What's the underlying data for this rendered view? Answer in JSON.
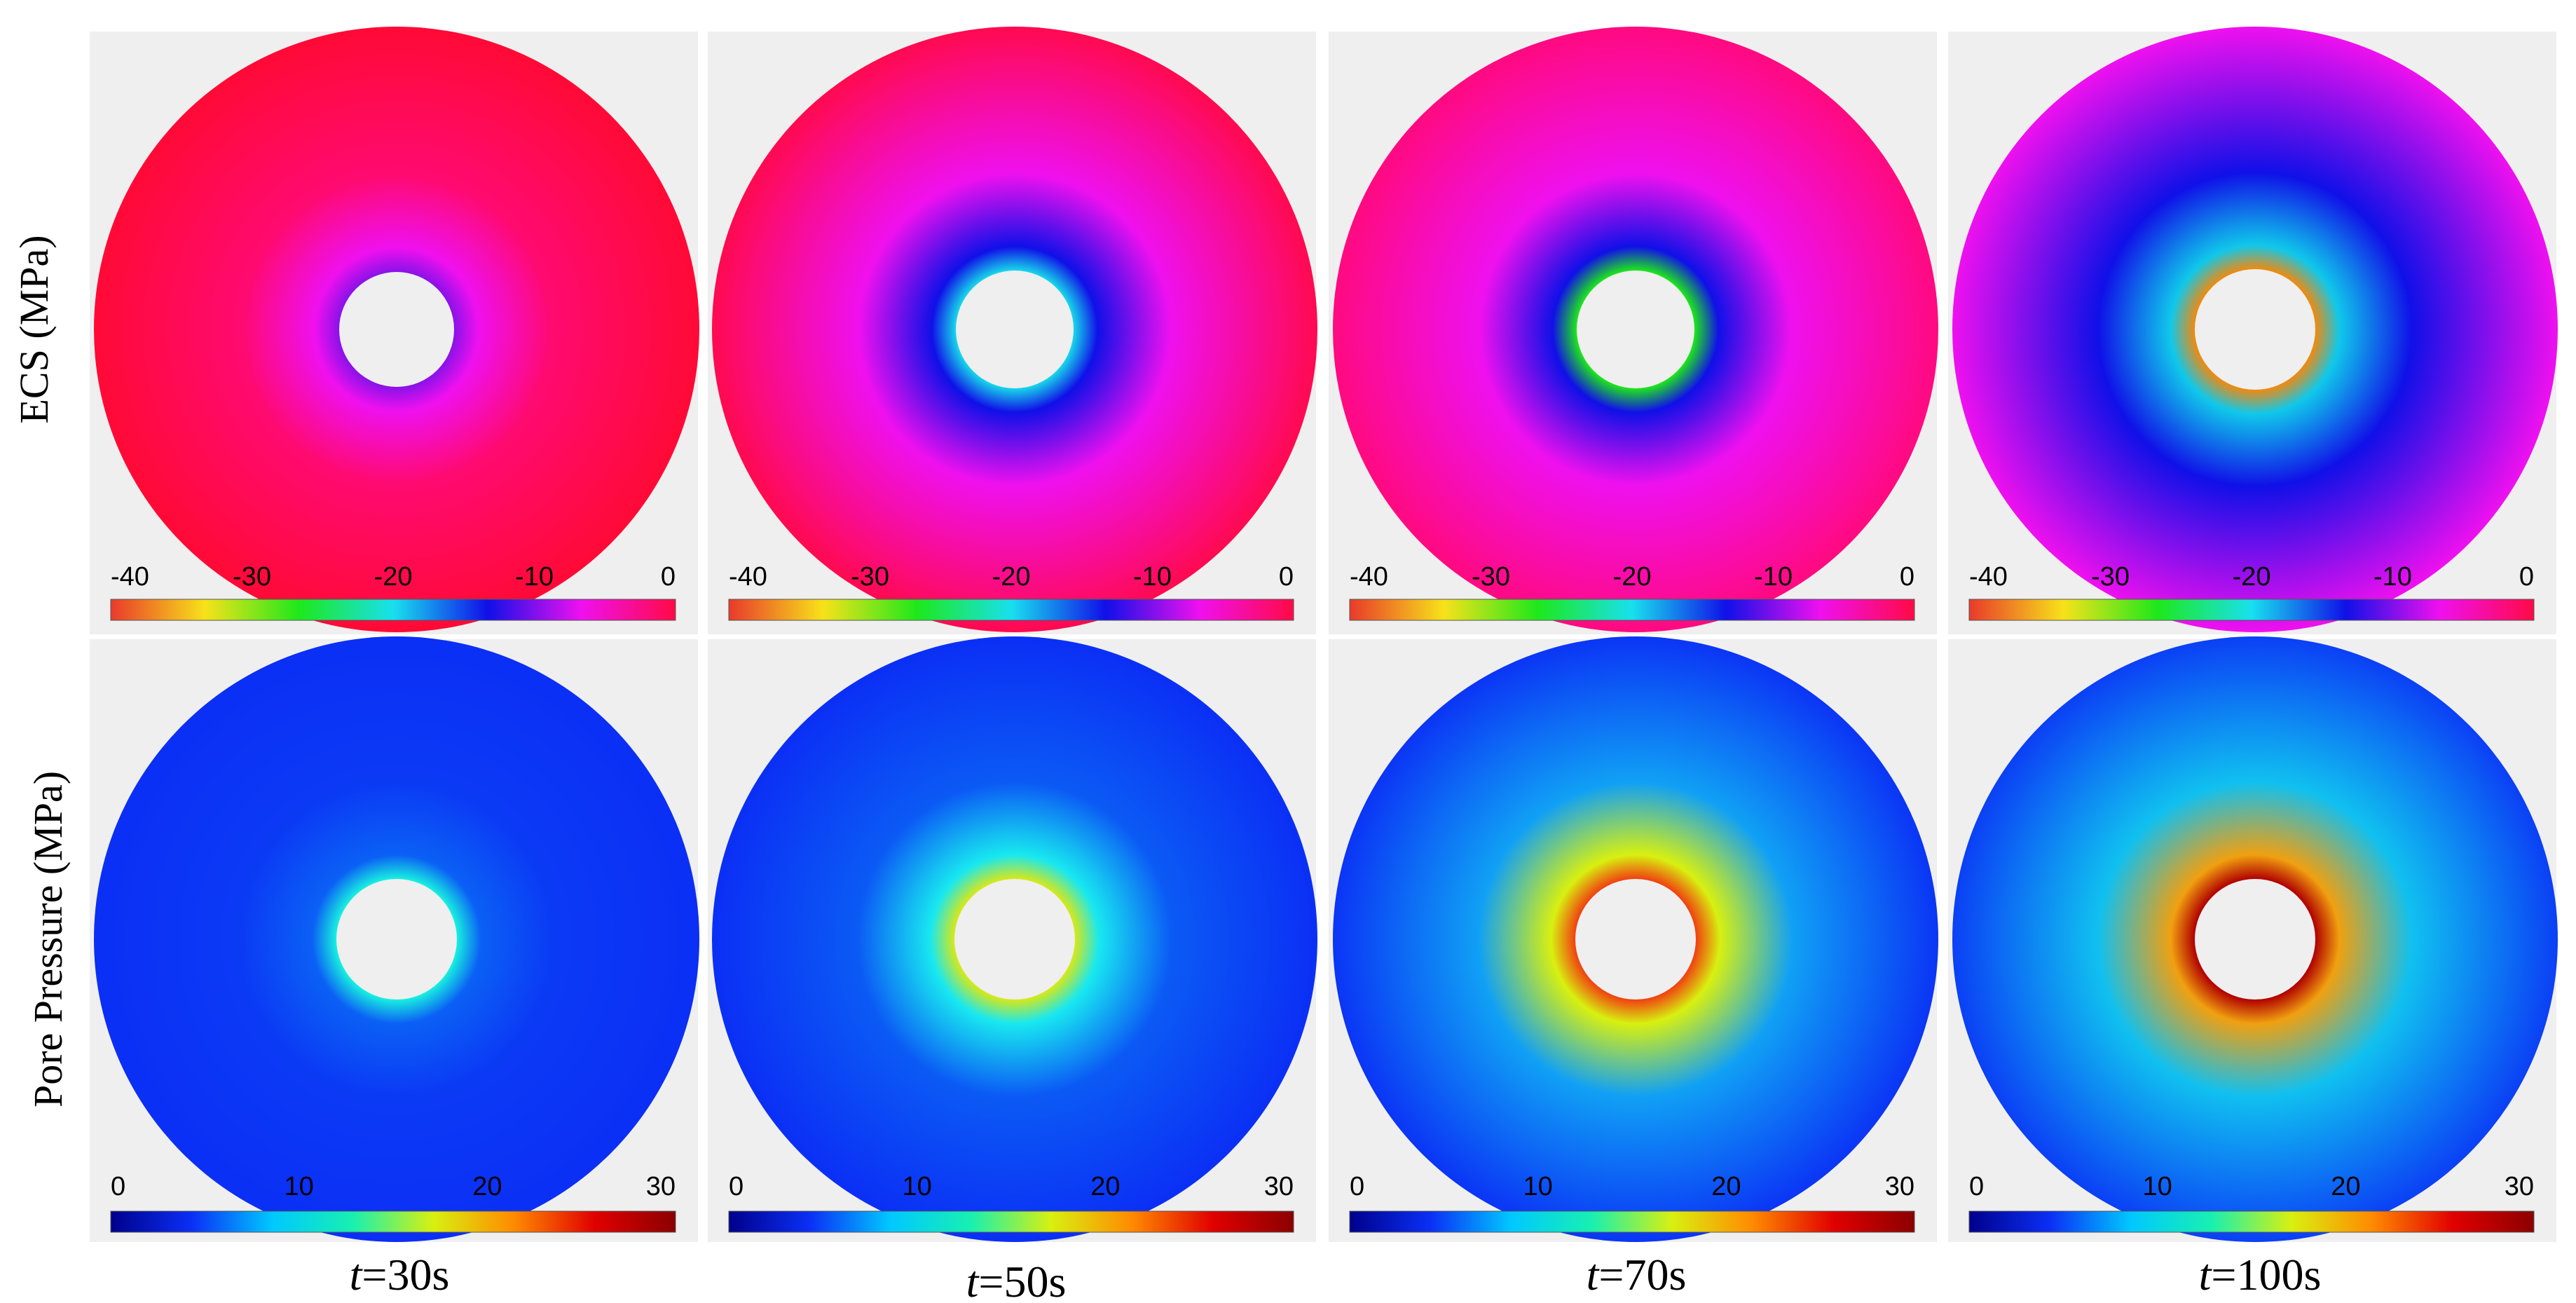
{
  "rows": [
    {
      "label": "ECS (MPa)",
      "colorbar_ticks": [
        "-40",
        "-30",
        "-20",
        "-10",
        "0"
      ],
      "colormap": [
        "#e83a2b",
        "#f7e21a",
        "#1ee81a",
        "#18e0ee",
        "#1010e8",
        "#ef10ef",
        "#ff0a46"
      ]
    },
    {
      "label": "Pore Pressure (MPa)",
      "colorbar_ticks": [
        "0",
        "10",
        "20",
        "30"
      ],
      "colormap": [
        "#00008b",
        "#0b2ff5",
        "#00c8ff",
        "#18f0b0",
        "#d8f010",
        "#ff8a00",
        "#e00000",
        "#8b0000"
      ]
    }
  ],
  "times": [
    {
      "label_t": "t",
      "label_rest": "=30s"
    },
    {
      "label_t": "t",
      "label_rest": "=50s"
    },
    {
      "label_t": "t",
      "label_rest": "=70s"
    },
    {
      "label_t": "t",
      "label_rest": "=100s"
    }
  ],
  "panels": {
    "ecs": [
      {
        "outer": "#ff0a36",
        "mid": "#ff0a70",
        "near": "#ef10ef",
        "edge": "#8a12e8"
      },
      {
        "outer": "#ff0a50",
        "mid": "#ef10ef",
        "near": "#1010e8",
        "edge": "#18d8ea"
      },
      {
        "outer": "#ff0a80",
        "mid": "#ef10ef",
        "near": "#1010e8",
        "edge": "#1ee81a"
      },
      {
        "outer": "#ef10ef",
        "mid": "#1010e8",
        "near": "#10c8ea",
        "edge": "#f08a10"
      }
    ],
    "pore": [
      {
        "outer": "#0b2ff5",
        "mid": "#0b3af5",
        "near": "#0b60f5",
        "edge": "#18f0e0"
      },
      {
        "outer": "#0b2ff5",
        "mid": "#0b5af5",
        "near": "#18e8f0",
        "edge": "#d8e818"
      },
      {
        "outer": "#0b35f5",
        "mid": "#10a0f5",
        "near": "#d8f010",
        "edge": "#f04010"
      },
      {
        "outer": "#0b40f5",
        "mid": "#10c0f0",
        "near": "#f0a010",
        "edge": "#b00000"
      }
    ]
  }
}
